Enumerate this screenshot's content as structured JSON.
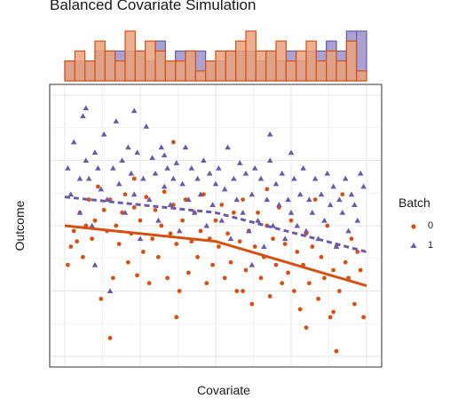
{
  "chart_data": {
    "type": "scatter",
    "title": "Balanced Covariate Simulation",
    "xlabel": "Covariate",
    "ylabel": "Outcome",
    "xlim": [
      0,
      1
    ],
    "ylim": [
      0,
      1
    ],
    "grid": true,
    "legend": {
      "title": "Batch",
      "placement": "right",
      "entries": [
        "0",
        "1"
      ]
    },
    "colors": {
      "batch0": "#d45113",
      "batch1": "#6b5aa8",
      "hist0_fill": "#e9a27c",
      "hist1_fill": "#a9a1d1"
    },
    "series": [
      {
        "name": "0",
        "marker": "circle",
        "points": [
          [
            0.01,
            0.35
          ],
          [
            0.02,
            0.42
          ],
          [
            0.03,
            0.48
          ],
          [
            0.05,
            0.55
          ],
          [
            0.06,
            0.38
          ],
          [
            0.07,
            0.5
          ],
          [
            0.08,
            0.6
          ],
          [
            0.09,
            0.45
          ],
          [
            0.1,
            0.52
          ],
          [
            0.11,
            0.65
          ],
          [
            0.12,
            0.22
          ],
          [
            0.13,
            0.56
          ],
          [
            0.14,
            0.48
          ],
          [
            0.15,
            0.6
          ],
          [
            0.16,
            0.3
          ],
          [
            0.17,
            0.5
          ],
          [
            0.18,
            0.43
          ],
          [
            0.19,
            0.55
          ],
          [
            0.2,
            0.62
          ],
          [
            0.21,
            0.36
          ],
          [
            0.22,
            0.47
          ],
          [
            0.23,
            0.57
          ],
          [
            0.24,
            0.31
          ],
          [
            0.25,
            0.52
          ],
          [
            0.26,
            0.4
          ],
          [
            0.27,
            0.61
          ],
          [
            0.28,
            0.28
          ],
          [
            0.29,
            0.45
          ],
          [
            0.3,
            0.56
          ],
          [
            0.31,
            0.38
          ],
          [
            0.32,
            0.5
          ],
          [
            0.33,
            0.63
          ],
          [
            0.34,
            0.3
          ],
          [
            0.35,
            0.47
          ],
          [
            0.36,
            0.58
          ],
          [
            0.37,
            0.43
          ],
          [
            0.38,
            0.25
          ],
          [
            0.39,
            0.52
          ],
          [
            0.4,
            0.6
          ],
          [
            0.41,
            0.32
          ],
          [
            0.42,
            0.44
          ],
          [
            0.43,
            0.55
          ],
          [
            0.44,
            0.38
          ],
          [
            0.45,
            0.48
          ],
          [
            0.46,
            0.62
          ],
          [
            0.47,
            0.28
          ],
          [
            0.48,
            0.45
          ],
          [
            0.49,
            0.35
          ],
          [
            0.5,
            0.52
          ],
          [
            0.51,
            0.42
          ],
          [
            0.52,
            0.58
          ],
          [
            0.53,
            0.3
          ],
          [
            0.54,
            0.47
          ],
          [
            0.55,
            0.36
          ],
          [
            0.56,
            0.55
          ],
          [
            0.57,
            0.25
          ],
          [
            0.58,
            0.44
          ],
          [
            0.59,
            0.6
          ],
          [
            0.6,
            0.33
          ],
          [
            0.61,
            0.48
          ],
          [
            0.62,
            0.2
          ],
          [
            0.63,
            0.42
          ],
          [
            0.64,
            0.55
          ],
          [
            0.65,
            0.3
          ],
          [
            0.66,
            0.38
          ],
          [
            0.67,
            0.5
          ],
          [
            0.68,
            0.23
          ],
          [
            0.69,
            0.45
          ],
          [
            0.7,
            0.35
          ],
          [
            0.71,
            0.57
          ],
          [
            0.72,
            0.28
          ],
          [
            0.73,
            0.43
          ],
          [
            0.74,
            0.32
          ],
          [
            0.75,
            0.52
          ],
          [
            0.76,
            0.25
          ],
          [
            0.77,
            0.4
          ],
          [
            0.78,
            0.18
          ],
          [
            0.79,
            0.35
          ],
          [
            0.8,
            0.47
          ],
          [
            0.81,
            0.28
          ],
          [
            0.82,
            0.42
          ],
          [
            0.83,
            0.6
          ],
          [
            0.84,
            0.22
          ],
          [
            0.85,
            0.38
          ],
          [
            0.86,
            0.3
          ],
          [
            0.87,
            0.5
          ],
          [
            0.88,
            0.15
          ],
          [
            0.89,
            0.33
          ],
          [
            0.9,
            0.42
          ],
          [
            0.91,
            0.25
          ],
          [
            0.92,
            0.62
          ],
          [
            0.93,
            0.36
          ],
          [
            0.94,
            0.3
          ],
          [
            0.95,
            0.45
          ],
          [
            0.96,
            0.2
          ],
          [
            0.97,
            0.4
          ],
          [
            0.98,
            0.33
          ],
          [
            0.99,
            0.15
          ],
          [
            0.15,
            0.07
          ],
          [
            0.37,
            0.15
          ],
          [
            0.59,
            0.25
          ],
          [
            0.36,
            0.82
          ],
          [
            0.8,
            0.11
          ],
          [
            0.9,
            0.02
          ],
          [
            0.89,
            0.17
          ],
          [
            0.04,
            0.44
          ],
          [
            0.23,
            0.68
          ],
          [
            0.67,
            0.64
          ]
        ]
      },
      {
        "name": "1",
        "marker": "triangle",
        "points": [
          [
            0.01,
            0.72
          ],
          [
            0.02,
            0.62
          ],
          [
            0.03,
            0.82
          ],
          [
            0.05,
            0.55
          ],
          [
            0.06,
            0.92
          ],
          [
            0.07,
            0.75
          ],
          [
            0.08,
            0.68
          ],
          [
            0.09,
            0.5
          ],
          [
            0.1,
            0.78
          ],
          [
            0.11,
            0.72
          ],
          [
            0.12,
            0.64
          ],
          [
            0.13,
            0.85
          ],
          [
            0.14,
            0.6
          ],
          [
            0.15,
            0.25
          ],
          [
            0.16,
            0.72
          ],
          [
            0.17,
            0.9
          ],
          [
            0.18,
            0.66
          ],
          [
            0.19,
            0.75
          ],
          [
            0.2,
            0.55
          ],
          [
            0.21,
            0.8
          ],
          [
            0.22,
            0.7
          ],
          [
            0.23,
            0.62
          ],
          [
            0.24,
            0.78
          ],
          [
            0.25,
            0.45
          ],
          [
            0.26,
            0.68
          ],
          [
            0.27,
            0.88
          ],
          [
            0.28,
            0.6
          ],
          [
            0.29,
            0.76
          ],
          [
            0.3,
            0.7
          ],
          [
            0.31,
            0.52
          ],
          [
            0.32,
            0.8
          ],
          [
            0.33,
            0.65
          ],
          [
            0.34,
            0.72
          ],
          [
            0.35,
            0.58
          ],
          [
            0.36,
            0.68
          ],
          [
            0.37,
            0.74
          ],
          [
            0.38,
            0.48
          ],
          [
            0.39,
            0.66
          ],
          [
            0.4,
            0.8
          ],
          [
            0.41,
            0.6
          ],
          [
            0.42,
            0.72
          ],
          [
            0.43,
            0.55
          ],
          [
            0.44,
            0.68
          ],
          [
            0.45,
            0.62
          ],
          [
            0.46,
            0.75
          ],
          [
            0.47,
            0.5
          ],
          [
            0.48,
            0.7
          ],
          [
            0.49,
            0.58
          ],
          [
            0.5,
            0.66
          ],
          [
            0.51,
            0.72
          ],
          [
            0.52,
            0.52
          ],
          [
            0.53,
            0.64
          ],
          [
            0.54,
            0.8
          ],
          [
            0.55,
            0.45
          ],
          [
            0.56,
            0.68
          ],
          [
            0.57,
            0.6
          ],
          [
            0.58,
            0.74
          ],
          [
            0.59,
            0.55
          ],
          [
            0.6,
            0.7
          ],
          [
            0.61,
            0.48
          ],
          [
            0.62,
            0.62
          ],
          [
            0.63,
            0.72
          ],
          [
            0.64,
            0.52
          ],
          [
            0.65,
            0.68
          ],
          [
            0.66,
            0.42
          ],
          [
            0.67,
            0.6
          ],
          [
            0.68,
            0.75
          ],
          [
            0.69,
            0.5
          ],
          [
            0.7,
            0.66
          ],
          [
            0.71,
            0.58
          ],
          [
            0.72,
            0.7
          ],
          [
            0.73,
            0.45
          ],
          [
            0.74,
            0.6
          ],
          [
            0.75,
            0.55
          ],
          [
            0.76,
            0.68
          ],
          [
            0.77,
            0.5
          ],
          [
            0.78,
            0.62
          ],
          [
            0.79,
            0.72
          ],
          [
            0.8,
            0.48
          ],
          [
            0.81,
            0.6
          ],
          [
            0.82,
            0.55
          ],
          [
            0.83,
            0.68
          ],
          [
            0.84,
            0.45
          ],
          [
            0.85,
            0.62
          ],
          [
            0.86,
            0.52
          ],
          [
            0.87,
            0.7
          ],
          [
            0.88,
            0.58
          ],
          [
            0.89,
            0.65
          ],
          [
            0.9,
            0.42
          ],
          [
            0.91,
            0.6
          ],
          [
            0.92,
            0.55
          ],
          [
            0.93,
            0.68
          ],
          [
            0.94,
            0.48
          ],
          [
            0.95,
            0.62
          ],
          [
            0.96,
            0.58
          ],
          [
            0.97,
            0.52
          ],
          [
            0.98,
            0.7
          ],
          [
            0.99,
            0.65
          ],
          [
            0.07,
            0.95
          ],
          [
            0.23,
            0.94
          ],
          [
            0.33,
            0.77
          ],
          [
            0.1,
            0.35
          ],
          [
            0.05,
            0.68
          ],
          [
            0.62,
            0.35
          ],
          [
            0.68,
            0.85
          ],
          [
            0.75,
            0.78
          ]
        ]
      }
    ],
    "trend_lines": [
      {
        "series": "0",
        "style": "solid",
        "x": [
          0,
          0.5,
          1
        ],
        "y": [
          0.5,
          0.44,
          0.27
        ]
      },
      {
        "series": "1",
        "style": "dashed",
        "x": [
          0,
          0.5,
          1
        ],
        "y": [
          0.61,
          0.55,
          0.4
        ]
      }
    ],
    "marginal_histogram": {
      "bins": 30,
      "counts_batch0": [
        2,
        3,
        2,
        4,
        3,
        2,
        5,
        3,
        4,
        3,
        2,
        2,
        3,
        1,
        2,
        3,
        3,
        4,
        5,
        3,
        3,
        4,
        2,
        3,
        4,
        2,
        3,
        2,
        4,
        1
      ],
      "counts_batch1": [
        2,
        2,
        2,
        3,
        3,
        3,
        3,
        3,
        2,
        4,
        2,
        3,
        3,
        3,
        2,
        2,
        3,
        3,
        3,
        2,
        3,
        2,
        3,
        2,
        3,
        3,
        4,
        3,
        5,
        5
      ]
    }
  }
}
